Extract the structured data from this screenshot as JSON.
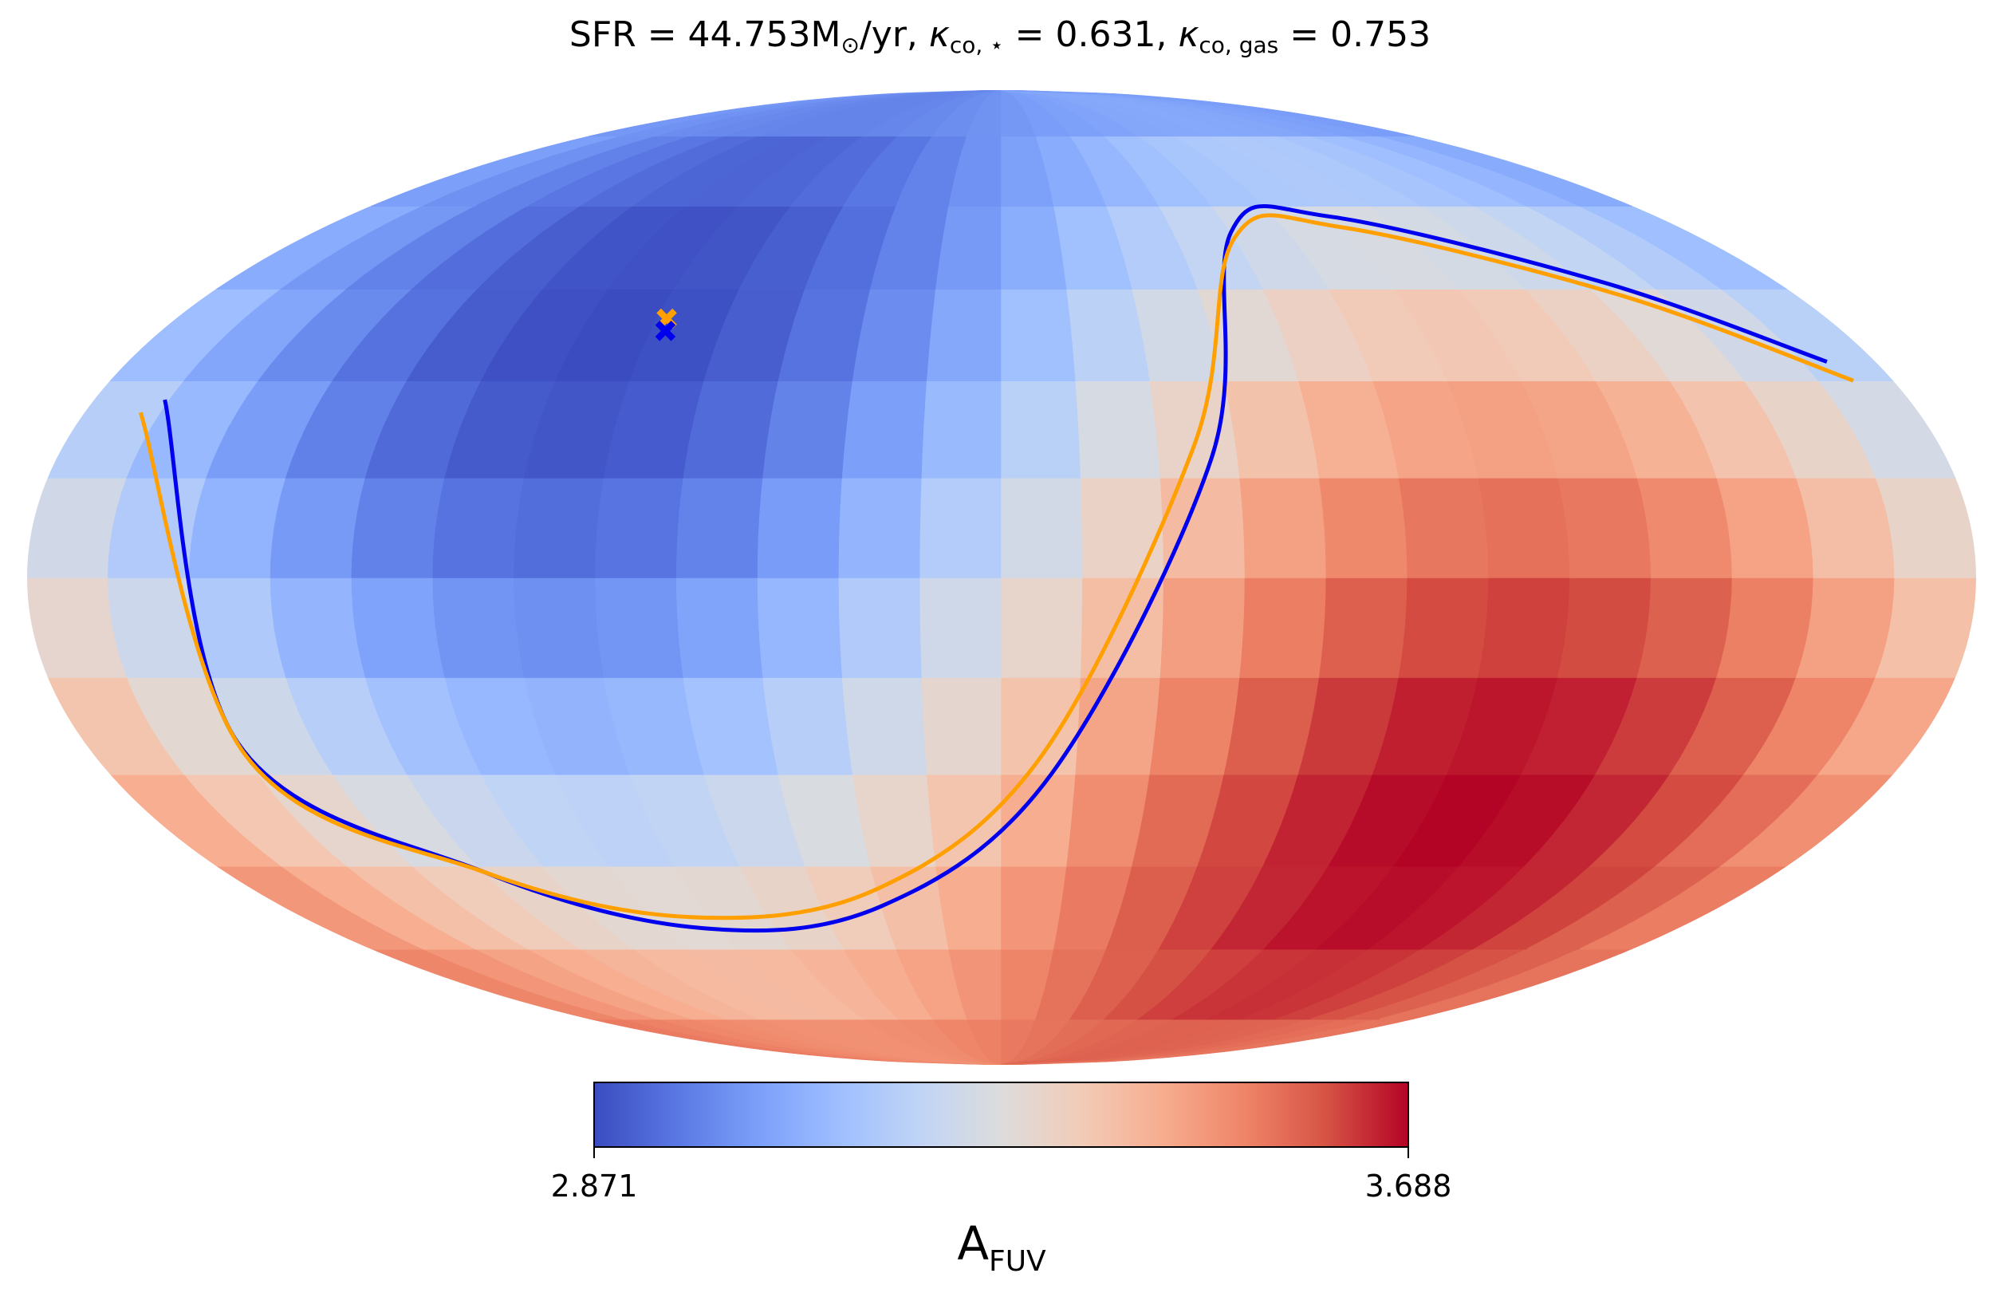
{
  "title": {
    "sfr_text": "SFR = 44.753M",
    "sfr_unit_sub": "⊙",
    "sfr_unit_tail": "/yr, ",
    "kappa": "κ",
    "kstar_sub": "co, ⋆",
    "kstar_val": " = 0.631, ",
    "kgas_sub": "co, gas",
    "kgas_val": " = 0.753"
  },
  "colorbar": {
    "min_label": "2.871",
    "max_label": "3.688",
    "label_main": "A",
    "label_sub": "FUV",
    "colors": [
      "#3b4cc0",
      "#5977e3",
      "#7b9ff9",
      "#9ebeff",
      "#c0d4f5",
      "#dddcdc",
      "#f2cbb7",
      "#f7ac8e",
      "#ee8468",
      "#d65244",
      "#b40426"
    ]
  },
  "chart_data": {
    "type": "heatmap",
    "projection": "mollweide",
    "quantity": "A_FUV",
    "range": [
      2.871,
      3.688
    ],
    "colormap": "coolwarm",
    "dipole": {
      "min": {
        "lon_deg": -83,
        "lat_deg": 40
      },
      "max": {
        "lon_deg": 97,
        "lat_deg": -40
      }
    },
    "curves": [
      {
        "color": "#0000ee",
        "points": [
          [
            -166,
            27
          ],
          [
            -150,
            -25
          ],
          [
            -120,
            -46
          ],
          [
            -80,
            -56
          ],
          [
            -30,
            -52
          ],
          [
            10,
            -30
          ],
          [
            40,
            18
          ],
          [
            60,
            55
          ],
          [
            90,
            58
          ],
          [
            140,
            46
          ],
          [
            170,
            33
          ]
        ]
      },
      {
        "color": "#ffa000",
        "points": [
          [
            -169,
            25
          ],
          [
            -150,
            -27
          ],
          [
            -120,
            -46
          ],
          [
            -80,
            -54
          ],
          [
            -30,
            -49
          ],
          [
            8,
            -27
          ],
          [
            37,
            20
          ],
          [
            60,
            54
          ],
          [
            90,
            56
          ],
          [
            140,
            44
          ],
          [
            172,
            30
          ]
        ]
      }
    ],
    "markers": [
      {
        "color": "#ffa000",
        "lon_deg": -73,
        "lat_deg": 40,
        "symbol": "x"
      },
      {
        "color": "#0000ee",
        "lon_deg": -72,
        "lat_deg": 38,
        "symbol": "x"
      }
    ]
  }
}
